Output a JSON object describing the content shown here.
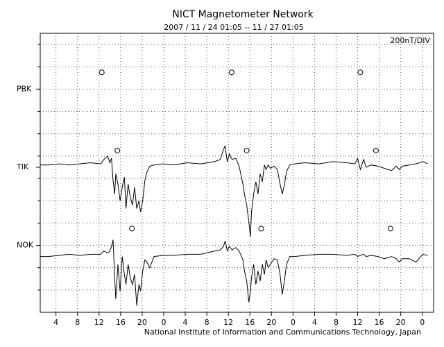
{
  "chart_data": {
    "type": "line",
    "title": "NICT Magnetometer Network",
    "subtitle": "2007 / 11 / 24   01:05 -- 11 / 27   01:05",
    "scale_note": "200nT/DIV",
    "footer": "National Institute of Information and Communications Technology, Japan",
    "xlim": [
      1.08,
      74.1
    ],
    "xticks": [
      {
        "value": 4,
        "label": "4"
      },
      {
        "value": 8,
        "label": "8"
      },
      {
        "value": 12,
        "label": "12"
      },
      {
        "value": 16,
        "label": "16"
      },
      {
        "value": 20,
        "label": "20"
      },
      {
        "value": 24,
        "label": "0"
      },
      {
        "value": 28,
        "label": "4"
      },
      {
        "value": 32,
        "label": "8"
      },
      {
        "value": 36,
        "label": "12"
      },
      {
        "value": 40,
        "label": "16"
      },
      {
        "value": 44,
        "label": "20"
      },
      {
        "value": 48,
        "label": "0"
      },
      {
        "value": 52,
        "label": "4"
      },
      {
        "value": 56,
        "label": "8"
      },
      {
        "value": 60,
        "label": "12"
      },
      {
        "value": 64,
        "label": "16"
      },
      {
        "value": 68,
        "label": "20"
      },
      {
        "value": 72,
        "label": "0"
      }
    ],
    "ylim": [
      0,
      2500
    ],
    "yticks": [
      {
        "value": 600,
        "label": "NOK"
      },
      {
        "value": 1300,
        "label": "TIK"
      },
      {
        "value": 2000,
        "label": "PBK"
      }
    ],
    "ygrid": [
      200,
      400,
      600,
      800,
      1000,
      1200,
      1400,
      1600,
      1800,
      2000,
      2200,
      2400
    ],
    "grid": true,
    "x": [
      1.1,
      2.6,
      4.6,
      6.5,
      8.4,
      10.4,
      12.3,
      12.9,
      13.6,
      14.0,
      14.3,
      14.6,
      14.9,
      15.1,
      15.5,
      15.9,
      16.3,
      16.7,
      17.0,
      17.4,
      17.8,
      18.2,
      18.6,
      19.0,
      19.4,
      19.7,
      20.1,
      20.5,
      20.9,
      21.4,
      22.2,
      23.9,
      25.8,
      28.4,
      30.9,
      33.5,
      34.5,
      35.1,
      35.4,
      35.8,
      36.2,
      36.7,
      37.4,
      38.0,
      38.7,
      39.0,
      39.4,
      39.8,
      40.1,
      40.3,
      40.7,
      41.1,
      41.5,
      41.9,
      42.3,
      42.7,
      43.0,
      43.4,
      43.8,
      44.5,
      45.1,
      45.6,
      46.0,
      46.4,
      46.8,
      47.4,
      48.3,
      50.2,
      52.8,
      55.4,
      58.0,
      59.5,
      60.0,
      60.5,
      61.1,
      61.6,
      62.5,
      63.8,
      65.0,
      66.3,
      67.2,
      67.7,
      68.3,
      69.6,
      70.8,
      72.1,
      73.0
    ],
    "series": [
      {
        "name": "TIK",
        "color": "#000000",
        "values": [
          1320,
          1320,
          1330,
          1320,
          1330,
          1340,
          1330,
          1370,
          1400,
          1340,
          1380,
          1180,
          1060,
          1240,
          1150,
          1000,
          1120,
          1210,
          930,
          1150,
          1030,
          960,
          1120,
          930,
          1000,
          900,
          1000,
          1180,
          1260,
          1310,
          1320,
          1330,
          1320,
          1340,
          1330,
          1350,
          1370,
          1460,
          1490,
          1350,
          1420,
          1370,
          1380,
          1310,
          1150,
          1060,
          960,
          810,
          680,
          900,
          1060,
          1170,
          1060,
          1240,
          1170,
          1320,
          1280,
          1320,
          1290,
          1310,
          1280,
          1150,
          1060,
          1140,
          1260,
          1320,
          1330,
          1340,
          1330,
          1350,
          1340,
          1330,
          1380,
          1280,
          1370,
          1300,
          1320,
          1310,
          1290,
          1270,
          1310,
          1280,
          1310,
          1320,
          1330,
          1350,
          1330
        ]
      },
      {
        "name": "NOK",
        "color": "#000000",
        "values": [
          500,
          500,
          510,
          520,
          510,
          520,
          520,
          550,
          530,
          550,
          590,
          650,
          310,
          120,
          430,
          190,
          500,
          340,
          250,
          430,
          310,
          250,
          340,
          60,
          250,
          190,
          370,
          470,
          450,
          400,
          500,
          510,
          510,
          520,
          520,
          550,
          560,
          590,
          640,
          550,
          590,
          560,
          580,
          550,
          470,
          370,
          280,
          90,
          190,
          310,
          430,
          250,
          370,
          280,
          430,
          340,
          470,
          400,
          430,
          480,
          470,
          340,
          160,
          280,
          430,
          500,
          500,
          510,
          520,
          520,
          510,
          520,
          500,
          510,
          520,
          500,
          510,
          500,
          480,
          500,
          480,
          450,
          480,
          480,
          450,
          520,
          510
        ]
      }
    ],
    "markers": [
      {
        "x": 12.5,
        "y": 2150
      },
      {
        "x": 36.6,
        "y": 2150
      },
      {
        "x": 60.5,
        "y": 2150
      },
      {
        "x": 15.4,
        "y": 1450
      },
      {
        "x": 39.4,
        "y": 1450
      },
      {
        "x": 63.4,
        "y": 1450
      },
      {
        "x": 18.1,
        "y": 750
      },
      {
        "x": 42.1,
        "y": 750
      },
      {
        "x": 66.1,
        "y": 750
      }
    ]
  }
}
